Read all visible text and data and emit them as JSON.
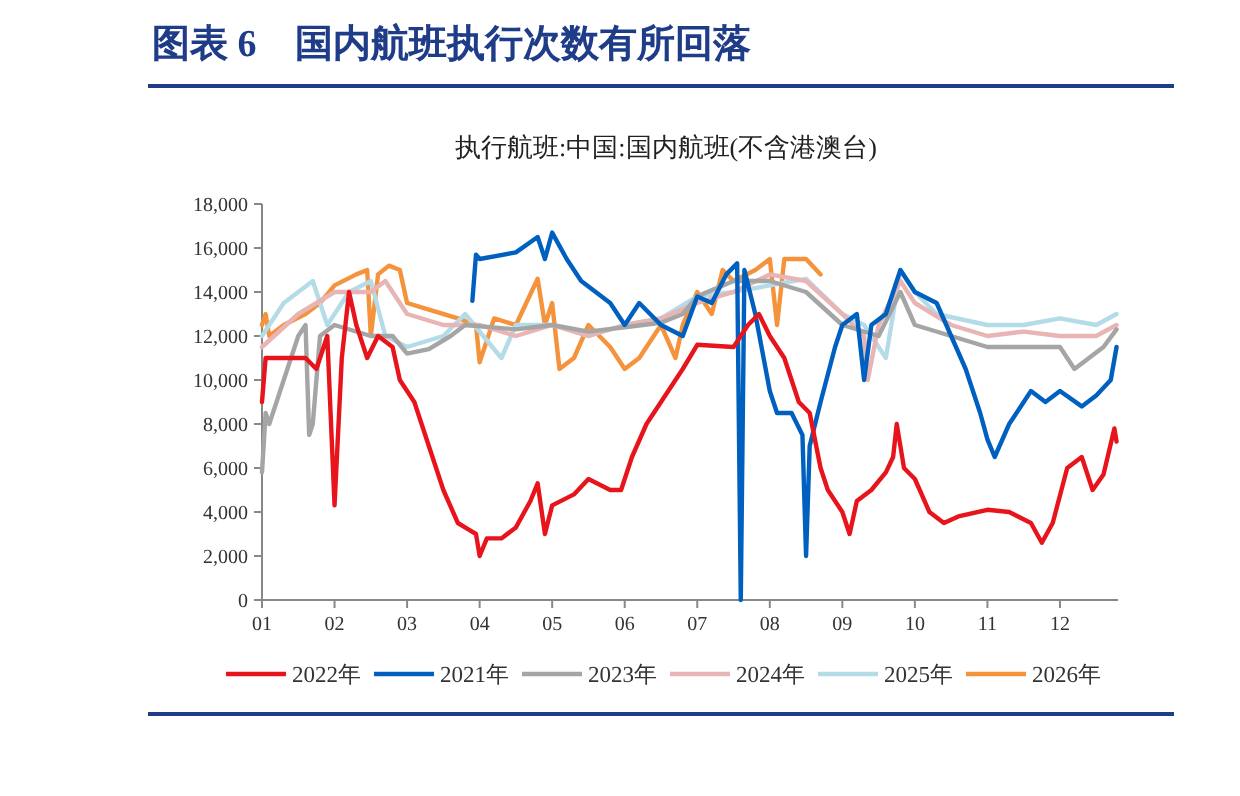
{
  "chart_data": {
    "type": "line",
    "title": "图表 6　国内航班执行次数有所回落",
    "subtitle": "执行航班:中国:国内航班(不含港澳台)",
    "xlim": [
      1,
      12.8
    ],
    "xticks": [
      {
        "value": 1,
        "label": "01"
      },
      {
        "value": 2,
        "label": "02"
      },
      {
        "value": 3,
        "label": "03"
      },
      {
        "value": 4,
        "label": "04"
      },
      {
        "value": 5,
        "label": "05"
      },
      {
        "value": 6,
        "label": "06"
      },
      {
        "value": 7,
        "label": "07"
      },
      {
        "value": 8,
        "label": "08"
      },
      {
        "value": 9,
        "label": "09"
      },
      {
        "value": 10,
        "label": "10"
      },
      {
        "value": 11,
        "label": "11"
      },
      {
        "value": 12,
        "label": "12"
      }
    ],
    "ylim": [
      0,
      18000
    ],
    "yticks": [
      {
        "value": 0,
        "label": "0"
      },
      {
        "value": 2000,
        "label": "2,000"
      },
      {
        "value": 4000,
        "label": "4,000"
      },
      {
        "value": 6000,
        "label": "6,000"
      },
      {
        "value": 8000,
        "label": "8,000"
      },
      {
        "value": 10000,
        "label": "10,000"
      },
      {
        "value": 12000,
        "label": "12,000"
      },
      {
        "value": 14000,
        "label": "14,000"
      },
      {
        "value": 16000,
        "label": "16,000"
      },
      {
        "value": 18000,
        "label": "18,000"
      }
    ],
    "grid": false,
    "legend": "bottom",
    "marker": "none",
    "line_style": "solid",
    "series": [
      {
        "name": "2022年",
        "color": "#e8141c",
        "x": [
          1,
          1.05,
          1.3,
          1.6,
          1.75,
          1.9,
          2,
          2.1,
          2.2,
          2.3,
          2.45,
          2.6,
          2.8,
          2.9,
          3,
          3.1,
          3.3,
          3.5,
          3.7,
          3.85,
          3.95,
          4,
          4.1,
          4.3,
          4.5,
          4.7,
          4.8,
          4.9,
          5,
          5.3,
          5.5,
          5.8,
          5.95,
          6.1,
          6.3,
          6.5,
          6.8,
          7,
          7.5,
          7.7,
          7.85,
          8,
          8.2,
          8.4,
          8.55,
          8.7,
          8.8,
          9,
          9.1,
          9.2,
          9.4,
          9.6,
          9.7,
          9.75,
          9.85,
          10,
          10.2,
          10.4,
          10.6,
          11,
          11.3,
          11.6,
          11.75,
          11.9,
          12.1,
          12.3,
          12.45,
          12.6,
          12.75,
          12.78
        ],
        "values": [
          9000,
          11000,
          11000,
          11000,
          10500,
          12000,
          4300,
          11000,
          14000,
          12500,
          11000,
          12000,
          11500,
          10000,
          9500,
          9000,
          7000,
          5000,
          3500,
          3200,
          3000,
          2000,
          2800,
          2800,
          3300,
          4500,
          5300,
          3000,
          4300,
          4800,
          5500,
          5000,
          5000,
          6500,
          8000,
          9000,
          10500,
          11600,
          11500,
          12500,
          13000,
          12000,
          11000,
          9000,
          8500,
          6000,
          5000,
          4000,
          3000,
          4500,
          5000,
          5800,
          6500,
          8000,
          6000,
          5500,
          4000,
          3500,
          3800,
          4100,
          4000,
          3500,
          2600,
          3500,
          6000,
          6500,
          5000,
          5700,
          7800,
          7200
        ]
      },
      {
        "name": "2021年",
        "color": "#0060bf",
        "x": [
          3.9,
          3.95,
          4,
          4.5,
          4.8,
          4.9,
          5,
          5.2,
          5.4,
          5.6,
          5.8,
          6,
          6.2,
          6.5,
          6.8,
          7,
          7.2,
          7.4,
          7.55,
          7.6,
          7.65,
          7.8,
          8,
          8.1,
          8.3,
          8.45,
          8.5,
          8.55,
          8.7,
          8.9,
          9,
          9.2,
          9.3,
          9.4,
          9.6,
          9.8,
          10,
          10.3,
          10.5,
          10.7,
          10.9,
          11,
          11.1,
          11.3,
          11.6,
          11.8,
          12,
          12.3,
          12.5,
          12.7,
          12.78
        ],
        "values": [
          13600,
          15700,
          15500,
          15800,
          16500,
          15500,
          16700,
          15500,
          14500,
          14000,
          13500,
          12500,
          13500,
          12500,
          12000,
          13800,
          13500,
          14800,
          15300,
          0,
          15000,
          13000,
          9500,
          8500,
          8500,
          7500,
          2000,
          7000,
          9000,
          11500,
          12500,
          13000,
          10000,
          12500,
          13000,
          15000,
          14000,
          13500,
          12000,
          10500,
          8500,
          7300,
          6500,
          8000,
          9500,
          9000,
          9500,
          8800,
          9300,
          10000,
          11500
        ]
      },
      {
        "name": "2023年",
        "color": "#a5a5a5",
        "x": [
          1,
          1.05,
          1.1,
          1.3,
          1.5,
          1.6,
          1.65,
          1.7,
          1.8,
          2,
          2.5,
          2.8,
          3,
          3.3,
          3.6,
          3.8,
          4.5,
          5,
          5.5,
          6,
          6.5,
          6.8,
          7,
          7.5,
          8,
          8.5,
          9,
          9.5,
          9.8,
          10,
          10.5,
          11,
          11.5,
          12,
          12.2,
          12.4,
          12.6,
          12.78
        ],
        "values": [
          5800,
          8500,
          8000,
          10000,
          12000,
          12500,
          7500,
          8000,
          12000,
          12500,
          12000,
          12000,
          11200,
          11400,
          12000,
          12500,
          12300,
          12500,
          12200,
          12400,
          12600,
          13000,
          13800,
          14500,
          14500,
          14000,
          12500,
          12000,
          14000,
          12500,
          12000,
          11500,
          11500,
          11500,
          10500,
          11000,
          11500,
          12300
        ]
      },
      {
        "name": "2024年",
        "color": "#e8b4b4",
        "x": [
          1,
          1.5,
          2,
          2.5,
          2.7,
          3,
          3.5,
          4,
          4.5,
          5,
          5.5,
          6,
          6.5,
          7,
          7.5,
          8,
          8.5,
          9,
          9.3,
          9.35,
          9.5,
          9.8,
          10,
          10.5,
          11,
          11.5,
          12,
          12.5,
          12.78
        ],
        "values": [
          11500,
          13000,
          14000,
          14000,
          14500,
          13000,
          12500,
          12500,
          12000,
          12500,
          12000,
          12500,
          12800,
          13500,
          14000,
          14800,
          14500,
          13000,
          12000,
          10000,
          12500,
          14500,
          13500,
          12500,
          12000,
          12200,
          12000,
          12000,
          12500
        ]
      },
      {
        "name": "2025年",
        "color": "#b4dce8",
        "x": [
          1,
          1.3,
          1.5,
          1.7,
          1.9,
          2.2,
          2.5,
          2.7,
          3,
          3.5,
          3.8,
          4.3,
          4.5,
          5,
          5.5,
          6,
          6.5,
          7,
          7.5,
          8,
          8.5,
          9,
          9.3,
          9.6,
          9.8,
          10,
          10.3,
          11,
          11.5,
          12,
          12.5,
          12.78
        ],
        "values": [
          12000,
          13500,
          14000,
          14500,
          12500,
          14000,
          14500,
          12000,
          11500,
          12000,
          13000,
          11000,
          12500,
          12500,
          12000,
          12500,
          12800,
          13800,
          14000,
          14300,
          14600,
          13000,
          12500,
          11000,
          15000,
          14000,
          13000,
          12500,
          12500,
          12800,
          12500,
          13000
        ]
      },
      {
        "name": "2026年",
        "color": "#f5933c",
        "x": [
          1,
          1.05,
          1.1,
          1.3,
          1.6,
          1.8,
          2,
          2.3,
          2.45,
          2.5,
          2.6,
          2.75,
          2.9,
          3,
          3.3,
          3.7,
          3.95,
          4,
          4.2,
          4.5,
          4.8,
          4.9,
          5,
          5.1,
          5.3,
          5.5,
          5.8,
          6,
          6.2,
          6.5,
          6.7,
          6.8,
          7,
          7.2,
          7.35,
          7.5,
          7.8,
          8,
          8.1,
          8.2,
          8.5,
          8.7
        ],
        "values": [
          12500,
          13000,
          12000,
          12500,
          13000,
          13500,
          14300,
          14800,
          15000,
          12000,
          14800,
          15200,
          15000,
          13500,
          13200,
          12800,
          12500,
          10800,
          12800,
          12500,
          14600,
          12500,
          13500,
          10500,
          11000,
          12500,
          11500,
          10500,
          11000,
          12500,
          11000,
          12500,
          14000,
          13000,
          15000,
          14500,
          15000,
          15500,
          12500,
          15500,
          15500,
          14800
        ]
      }
    ]
  }
}
